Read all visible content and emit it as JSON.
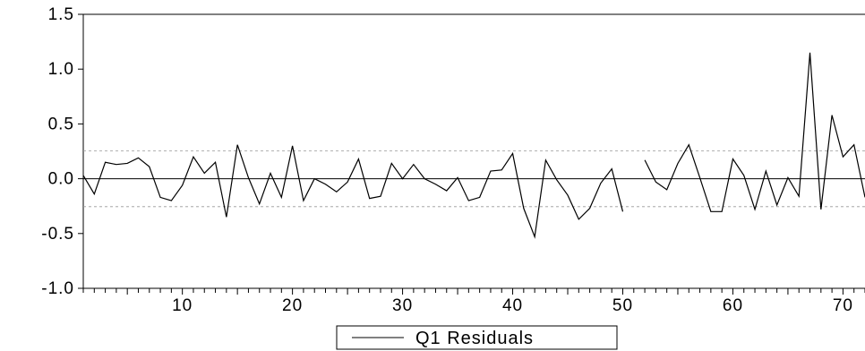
{
  "chart_data": {
    "type": "line",
    "x_start": 1,
    "xlim": [
      1,
      72
    ],
    "ylim": [
      -1.0,
      1.5
    ],
    "y_ticks": [
      -1.0,
      -0.5,
      0.0,
      0.5,
      1.0,
      1.5
    ],
    "y_tick_labels": [
      "-1.0",
      "-0.5",
      "0.0",
      "0.5",
      "1.0",
      "1.5"
    ],
    "x_ticks": [
      10,
      20,
      30,
      40,
      50,
      60,
      70
    ],
    "x_tick_labels": [
      "10",
      "20",
      "30",
      "40",
      "50",
      "60",
      "70"
    ],
    "reference_lines": [
      0.255,
      0.0,
      -0.255
    ],
    "series": [
      {
        "name": "Q1 Residuals",
        "color": "#000000",
        "values": [
          0.03,
          -0.14,
          0.15,
          0.13,
          0.14,
          0.19,
          0.11,
          -0.17,
          -0.2,
          -0.06,
          0.2,
          0.05,
          0.15,
          -0.35,
          0.31,
          0.01,
          -0.23,
          0.05,
          -0.17,
          0.3,
          -0.2,
          0.0,
          -0.05,
          -0.12,
          -0.03,
          0.18,
          -0.18,
          -0.16,
          0.14,
          0.0,
          0.13,
          0.0,
          -0.05,
          -0.11,
          0.01,
          -0.2,
          -0.17,
          0.07,
          0.08,
          0.23,
          -0.27,
          -0.53,
          0.17,
          -0.01,
          -0.15,
          -0.37,
          -0.27,
          -0.04,
          0.09,
          -0.3,
          null,
          0.17,
          -0.03,
          -0.1,
          0.14,
          0.31,
          0.01,
          -0.3,
          -0.3,
          0.18,
          0.03,
          -0.28,
          0.07,
          -0.24,
          0.01,
          -0.16,
          1.15,
          -0.28,
          0.58,
          0.2,
          0.31,
          -0.17
        ]
      }
    ],
    "legend": "bottom-center",
    "grid": false
  }
}
